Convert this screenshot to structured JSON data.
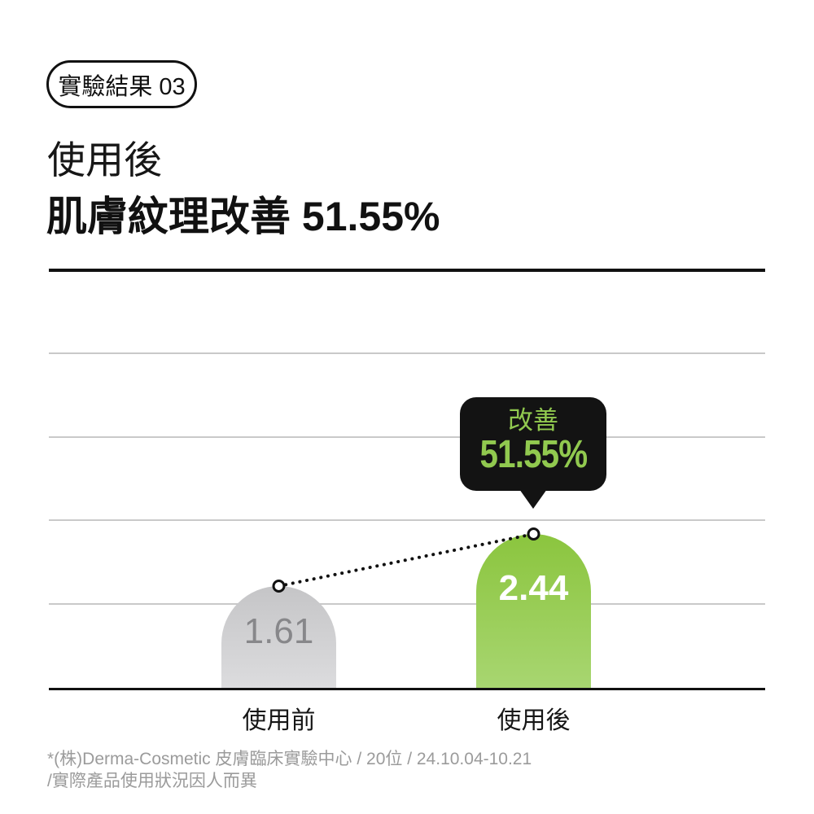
{
  "badge": {
    "label": "實驗結果 03"
  },
  "title": {
    "line1": "使用後",
    "line2": "肌膚紋理改善 51.55%"
  },
  "chart_data": {
    "type": "bar",
    "categories": [
      "使用前",
      "使用後"
    ],
    "values": [
      1.61,
      2.44
    ],
    "value_labels": [
      "1.61",
      "2.44"
    ],
    "series": [
      {
        "name": "肌膚紋理",
        "values": [
          1.61,
          2.44
        ]
      }
    ],
    "annotation": {
      "label": "改善",
      "value": "51.55%",
      "target": "使用後"
    },
    "title": "使用後 肌膚紋理改善 51.55%",
    "xlabel": "",
    "ylabel": "",
    "ylim": [
      0,
      6.6
    ],
    "grid": true,
    "legend": false,
    "bar_colors": [
      {
        "top": "#C5C5C7",
        "bottom": "#DCDCDE"
      },
      {
        "top": "#8BC53E",
        "bottom": "#A8D671"
      }
    ],
    "value_label_colors": [
      "#87878A",
      "#FFFFFF"
    ],
    "connector": {
      "style": "dotted",
      "color": "#111111",
      "markers": "open-circle"
    }
  },
  "footnote": {
    "line1": "*(株)Derma-Cosmetic 皮膚臨床實驗中心 / 20位 / 24.10.04-10.21",
    "line2": "/實際產品使用狀況因人而異"
  },
  "colors": {
    "accent_green": "#8BC53E",
    "bubble_bg": "#131313",
    "bubble_text": "#91C94F",
    "gridline": "#C9C9C9",
    "axis_line": "#111111",
    "footnote_text": "#9B9B9B"
  }
}
